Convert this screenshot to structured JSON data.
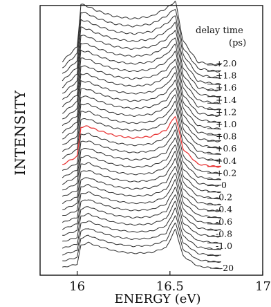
{
  "chart_data": {
    "type": "line",
    "xlabel": "ENERGY (eV)",
    "ylabel": "INTENSITY",
    "xlim": [
      15.8,
      17.0
    ],
    "xticks": [
      "16",
      "16.5",
      "17"
    ],
    "xtick_values": [
      16.0,
      16.5,
      17.0
    ],
    "annotation": {
      "line1": "delay time",
      "line2": "(ps)"
    },
    "delay_labels": [
      "+2.0",
      "+1.8",
      "+1.6",
      "+1.4",
      "+1.2",
      "+1.0",
      "+0.8",
      "+0.6",
      "+0.4",
      "+0.2",
      "0",
      "-0.2",
      "-0.4",
      "-0.6",
      "-0.8",
      "-1.0",
      "-20"
    ],
    "highlight_label": "0",
    "highlight_color": "#e83535",
    "trace_color": "#333333",
    "trace_count": 33,
    "series_shape": {
      "x": [
        15.9,
        16.0,
        16.02,
        16.06,
        16.1,
        16.2,
        16.3,
        16.4,
        16.48,
        16.53,
        16.57,
        16.65,
        16.75
      ],
      "y_minus20ps": [
        0.0,
        0.1,
        0.55,
        0.62,
        0.55,
        0.42,
        0.36,
        0.38,
        0.5,
        0.95,
        0.3,
        0.05,
        0.0
      ],
      "y_plus2ps": [
        0.0,
        0.3,
        1.0,
        0.96,
        0.9,
        0.8,
        0.76,
        0.8,
        0.93,
        1.05,
        0.4,
        0.05,
        0.0
      ]
    }
  }
}
